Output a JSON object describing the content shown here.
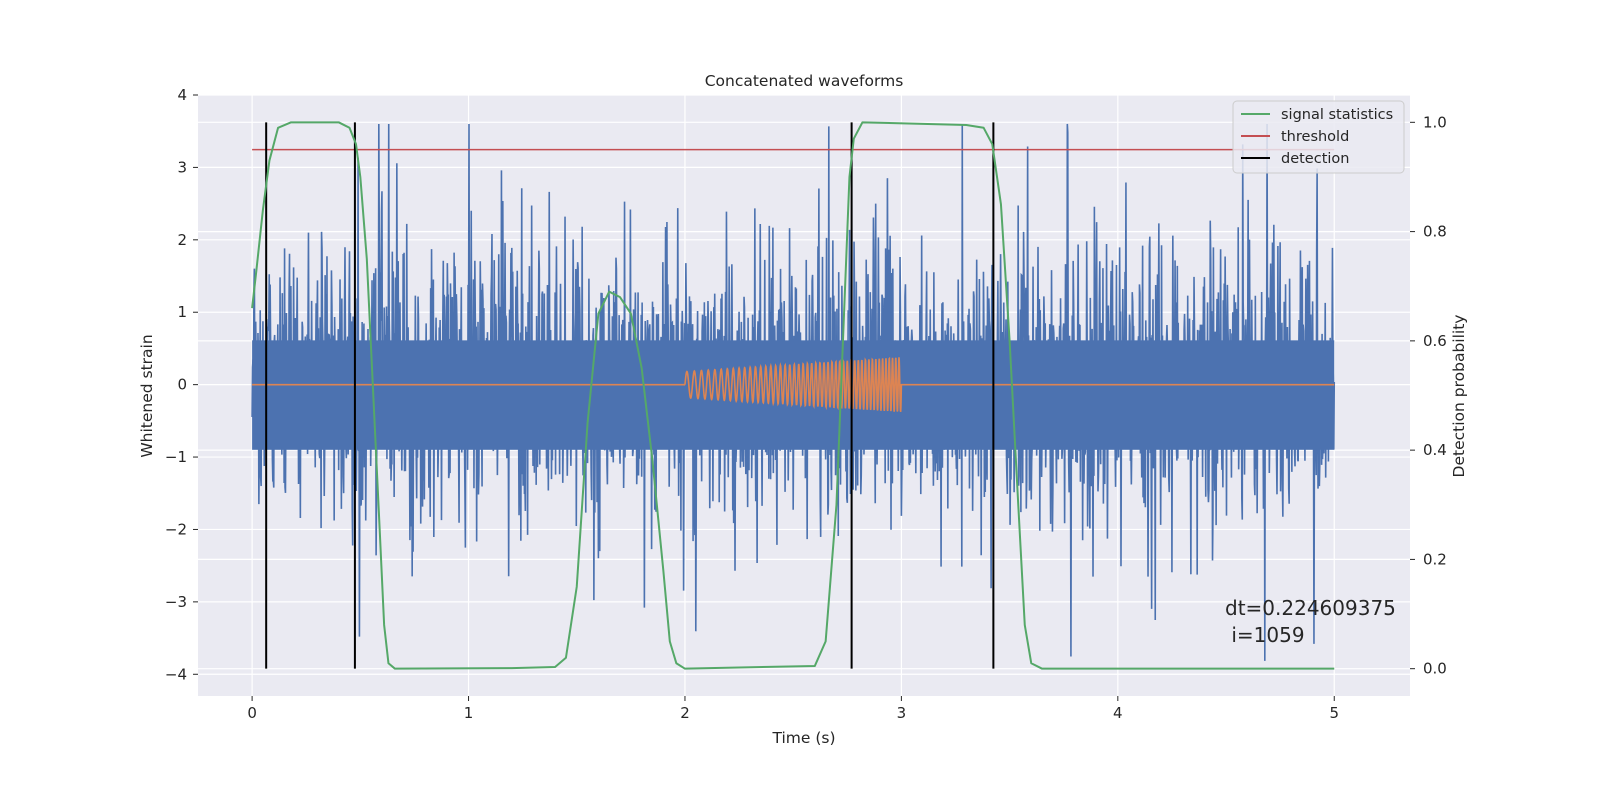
{
  "chart_data": {
    "type": "line",
    "title": "Concatenated waveforms",
    "xlabel": "Time (s)",
    "ylabel_left": "Whitened strain",
    "ylabel_right": "Detection probability",
    "xlim": [
      -0.25,
      5.35
    ],
    "ylim_left": [
      -4.3,
      4.0
    ],
    "ylim_right": [
      -0.05,
      1.05
    ],
    "x_ticks": [
      0,
      1,
      2,
      3,
      4,
      5
    ],
    "x_tick_labels": [
      "0",
      "1",
      "2",
      "3",
      "4",
      "5"
    ],
    "y_left_ticks": [
      -4,
      -3,
      -2,
      -1,
      0,
      1,
      2,
      3,
      4
    ],
    "y_left_tick_labels": [
      "−4",
      "−3",
      "−2",
      "−1",
      "0",
      "1",
      "2",
      "3",
      "4"
    ],
    "y_right_ticks": [
      0.0,
      0.2,
      0.4,
      0.6,
      0.8,
      1.0
    ],
    "y_right_tick_labels": [
      "0.0",
      "0.2",
      "0.4",
      "0.6",
      "0.8",
      "1.0"
    ],
    "grid": true,
    "legend_position": "top-right",
    "series": [
      {
        "name": "",
        "axis": "left",
        "color": "#4c72b0",
        "kind": "noise",
        "x_range": [
          0,
          5
        ],
        "core_amplitude": 0.9,
        "peak_range": [
          -3.9,
          3.6
        ]
      },
      {
        "name": "",
        "axis": "left",
        "color": "#dd8452",
        "kind": "chirp",
        "x_range": [
          0,
          5
        ],
        "chirp_x_range": [
          2.0,
          3.0
        ],
        "amplitude_start": 0.18,
        "amplitude_end": 0.38
      },
      {
        "name": "signal statistics",
        "axis": "right",
        "color": "#55a868",
        "points": [
          [
            0.0,
            0.66
          ],
          [
            0.02,
            0.73
          ],
          [
            0.05,
            0.84
          ],
          [
            0.08,
            0.93
          ],
          [
            0.12,
            0.99
          ],
          [
            0.18,
            1.0
          ],
          [
            0.4,
            1.0
          ],
          [
            0.45,
            0.99
          ],
          [
            0.48,
            0.96
          ],
          [
            0.5,
            0.9
          ],
          [
            0.53,
            0.75
          ],
          [
            0.56,
            0.5
          ],
          [
            0.59,
            0.25
          ],
          [
            0.61,
            0.08
          ],
          [
            0.63,
            0.01
          ],
          [
            0.66,
            0.0
          ],
          [
            1.2,
            0.001
          ],
          [
            1.4,
            0.003
          ],
          [
            1.45,
            0.02
          ],
          [
            1.5,
            0.15
          ],
          [
            1.55,
            0.45
          ],
          [
            1.6,
            0.65
          ],
          [
            1.65,
            0.69
          ],
          [
            1.7,
            0.68
          ],
          [
            1.75,
            0.65
          ],
          [
            1.8,
            0.55
          ],
          [
            1.85,
            0.38
          ],
          [
            1.9,
            0.18
          ],
          [
            1.93,
            0.05
          ],
          [
            1.96,
            0.01
          ],
          [
            2.0,
            0.0
          ],
          [
            2.6,
            0.005
          ],
          [
            2.65,
            0.05
          ],
          [
            2.7,
            0.3
          ],
          [
            2.73,
            0.6
          ],
          [
            2.76,
            0.9
          ],
          [
            2.78,
            0.97
          ],
          [
            2.82,
            1.0
          ],
          [
            3.3,
            0.995
          ],
          [
            3.38,
            0.99
          ],
          [
            3.42,
            0.96
          ],
          [
            3.46,
            0.85
          ],
          [
            3.5,
            0.6
          ],
          [
            3.54,
            0.3
          ],
          [
            3.57,
            0.08
          ],
          [
            3.6,
            0.01
          ],
          [
            3.65,
            0.0
          ],
          [
            5.0,
            0.0
          ]
        ]
      },
      {
        "name": "threshold",
        "axis": "right",
        "color": "#c44e52",
        "x_range": [
          0,
          5
        ],
        "value": 0.95
      },
      {
        "name": "detection",
        "axis": "right",
        "color": "#000000",
        "x_values": [
          0.065,
          0.475,
          2.77,
          3.425
        ],
        "y_range": [
          0.0,
          1.0
        ]
      }
    ],
    "annotation": {
      "line1": "dt=0.224609375",
      "line2": " i=1059"
    }
  }
}
